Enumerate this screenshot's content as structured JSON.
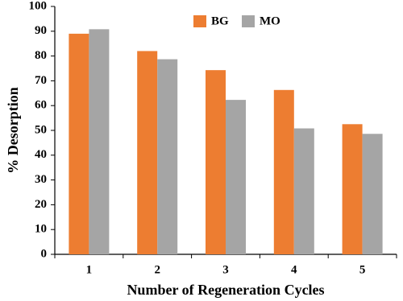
{
  "chart_data": {
    "type": "bar",
    "x_label": "Number of Regeneration Cycles",
    "y_label": "% Desorption",
    "categories": [
      "1",
      "2",
      "3",
      "4",
      "5"
    ],
    "series": [
      {
        "name": "BG",
        "color": "#ed7d31",
        "values": [
          89,
          82,
          74.3,
          66.3,
          52.5
        ]
      },
      {
        "name": "MO",
        "color": "#a5a5a5",
        "values": [
          90.8,
          78.7,
          62.3,
          50.8,
          48.6
        ]
      }
    ],
    "ylim": [
      0,
      100
    ],
    "yticks": [
      0,
      10,
      20,
      30,
      40,
      50,
      60,
      70,
      80,
      90,
      100
    ],
    "grid": false,
    "legend": "top"
  }
}
